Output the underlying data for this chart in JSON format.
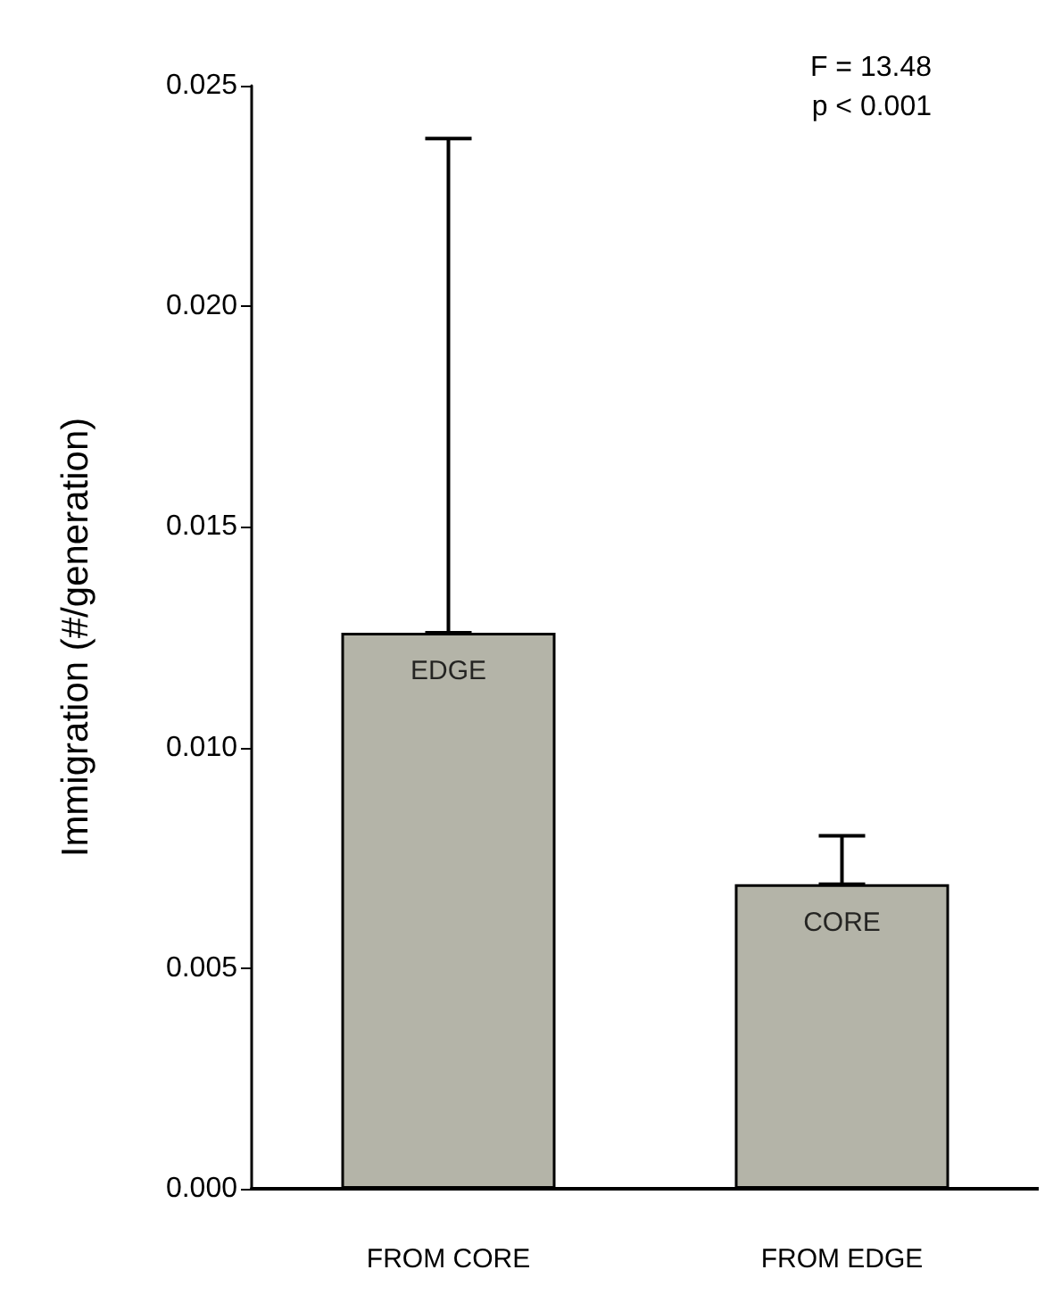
{
  "chart_data": {
    "type": "bar",
    "ylabel": "Immigration (#/generation)",
    "categories": [
      "FROM CORE",
      "FROM EDGE"
    ],
    "values": [
      0.0126,
      0.0069
    ],
    "errors": [
      [
        0.0126,
        0.0238
      ],
      [
        0.0069,
        0.008
      ]
    ],
    "color": "#b4b4a8",
    "ylim": [
      0,
      0.025
    ],
    "yticks": [
      {
        "value": 0,
        "label": "0.000"
      },
      0.005,
      {
        "value": 0.01,
        "label": "0.010"
      },
      0.015,
      {
        "value": 0.02,
        "label": "0.020"
      },
      0.025
    ],
    "grid": false,
    "annotations": [
      {
        "text": "EDGE",
        "x": "FROM CORE",
        "y": 0.0126
      },
      {
        "text": "CORE",
        "x": "FROM EDGE",
        "y": 0.0069
      },
      "F = 13.48",
      "p < 0.001"
    ]
  }
}
